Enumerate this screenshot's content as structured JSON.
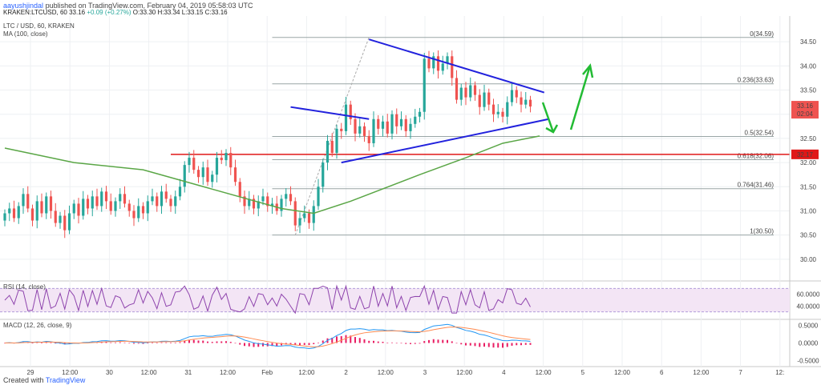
{
  "header": {
    "user": "aayushjindal",
    "published": "published on TradingView.com, February 04, 2019 05:58:03 UTC",
    "symbol": "KRAKEN:LTCUSD, 60",
    "last": "33.16",
    "change": "+0.09 (+0.27%)",
    "ohlc": "O:33.30 H:33.34 L:33.15 C:33.16"
  },
  "legend": {
    "title": "LTC / USD, 60, KRAKEN",
    "ma": "MA (100, close)",
    "rsi": "RSI (14, close)",
    "macd": "MACD (12, 26, close, 9)"
  },
  "footer": {
    "created": "Created with",
    "brand": "TradingView"
  },
  "colors": {
    "up": "#26a69a",
    "down": "#ef5350",
    "ma": "#5aa646",
    "trend": "#2222dd",
    "arrow": "#22bb33",
    "fib": "#9aa6a6",
    "support": "#e01818",
    "rsi": "#8e44ad",
    "macd": "#2196f3",
    "signal": "#ff8a50",
    "hist": "#e91e63"
  },
  "chart_data": {
    "type": "candlestick",
    "x_ticks": [
      "29",
      "12:00",
      "30",
      "12:00",
      "31",
      "12:00",
      "Feb",
      "12:00",
      "2",
      "12:00",
      "3",
      "12:00",
      "4",
      "12:00",
      "5",
      "12:00",
      "6",
      "12:00",
      "7",
      "12:"
    ],
    "y_ticks": [
      "34.50",
      "34.00",
      "33.50",
      "33.00",
      "32.50",
      "32.00",
      "31.50",
      "31.00",
      "30.50",
      "30.00"
    ],
    "y_range": [
      29.6,
      35.0
    ],
    "last_price": "33.16",
    "countdown": "02:04",
    "support_level": "32.17",
    "fibonacci": [
      {
        "label": "0(34.59)",
        "value": 34.59
      },
      {
        "label": "0.236(33.63)",
        "value": 33.63
      },
      {
        "label": "0.5(32.54)",
        "value": 32.54
      },
      {
        "label": "0.618(32.06)",
        "value": 32.06
      },
      {
        "label": "0.764(31.46)",
        "value": 31.46
      },
      {
        "label": "1(30.50)",
        "value": 30.5
      }
    ],
    "closes": [
      30.95,
      31.05,
      30.85,
      31.1,
      31.35,
      31.05,
      30.8,
      31.2,
      30.95,
      31.3,
      31.0,
      30.75,
      30.9,
      30.6,
      30.95,
      31.15,
      30.9,
      31.25,
      31.05,
      31.3,
      31.1,
      31.4,
      31.2,
      31.0,
      31.2,
      31.35,
      31.15,
      31.0,
      30.85,
      31.1,
      30.95,
      31.2,
      31.3,
      31.1,
      31.4,
      31.25,
      31.1,
      31.3,
      31.5,
      31.95,
      32.1,
      31.85,
      31.7,
      31.9,
      31.6,
      31.75,
      32.1,
      32.05,
      32.2,
      31.9,
      31.6,
      31.3,
      31.1,
      31.25,
      31.05,
      31.2,
      31.3,
      31.1,
      31.15,
      31.0,
      31.25,
      31.35,
      31.2,
      30.7,
      30.85,
      30.95,
      30.75,
      31.1,
      31.5,
      32.0,
      32.45,
      32.2,
      32.7,
      32.65,
      33.2,
      32.9,
      32.6,
      32.75,
      32.55,
      32.4,
      32.9,
      32.7,
      32.85,
      32.6,
      33.0,
      32.75,
      32.9,
      32.65,
      32.8,
      32.95,
      33.05,
      34.15,
      33.95,
      34.2,
      33.9,
      34.05,
      34.2,
      33.75,
      33.3,
      33.55,
      33.35,
      33.6,
      33.4,
      33.15,
      33.45,
      33.2,
      33.0,
      33.05,
      32.95,
      33.25,
      33.5,
      33.35,
      33.2,
      33.3,
      33.16
    ],
    "ma100": [
      [
        0,
        32.3
      ],
      [
        15,
        32.0
      ],
      [
        30,
        31.85
      ],
      [
        45,
        31.45
      ],
      [
        60,
        31.05
      ],
      [
        67,
        30.95
      ],
      [
        75,
        31.2
      ],
      [
        90,
        31.75
      ],
      [
        100,
        32.1
      ],
      [
        108,
        32.4
      ],
      [
        116,
        32.55
      ]
    ],
    "trendlines": [
      {
        "from": [
          79,
          34.55
        ],
        "to": [
          117,
          33.45
        ]
      },
      {
        "from": [
          73,
          32.0
        ],
        "to": [
          118,
          32.9
        ]
      },
      {
        "from": [
          62,
          33.15
        ],
        "to": [
          79,
          32.9
        ]
      }
    ],
    "rsi": {
      "range": [
        20,
        80
      ],
      "levels": [
        70,
        30
      ],
      "ticks": [
        "60.0000",
        "40.0000"
      ]
    },
    "macd": {
      "ticks": [
        "0.5000",
        "0.0000",
        "-0.5000"
      ]
    }
  }
}
